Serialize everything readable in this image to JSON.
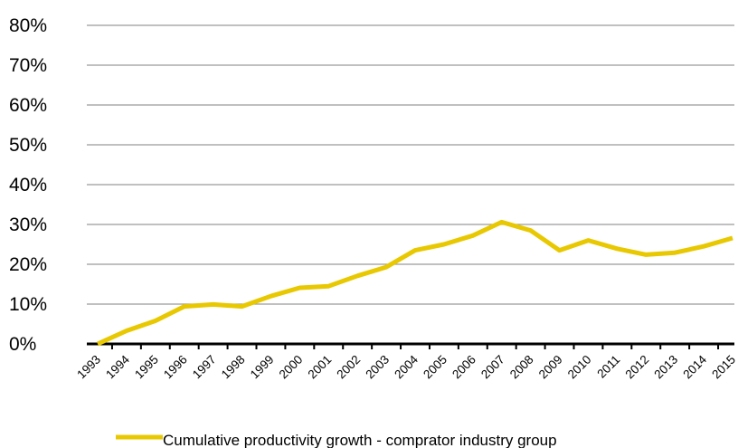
{
  "chart_data": {
    "type": "line",
    "x": [
      "1993",
      "1994",
      "1995",
      "1996",
      "1997",
      "1998",
      "1999",
      "2000",
      "2001",
      "2002",
      "2003",
      "2004",
      "2005",
      "2006",
      "2007",
      "2008",
      "2009",
      "2010",
      "2011",
      "2012",
      "2013",
      "2014",
      "2015"
    ],
    "series": [
      {
        "name": "Cumulative productivity growth - comprator industry group",
        "values": [
          0,
          3.3,
          5.8,
          9.4,
          9.9,
          9.4,
          12.0,
          14.1,
          14.5,
          17.1,
          19.3,
          23.5,
          25.0,
          27.2,
          30.6,
          28.5,
          23.5,
          26.0,
          23.9,
          22.4,
          22.9,
          24.5,
          26.6
        ],
        "color": "#E8C800"
      }
    ],
    "yticks": [
      "0%",
      "10%",
      "20%",
      "30%",
      "40%",
      "50%",
      "60%",
      "70%",
      "80%"
    ],
    "ylim": [
      0,
      80
    ],
    "grid": true,
    "legend_position": "bottom-center"
  }
}
